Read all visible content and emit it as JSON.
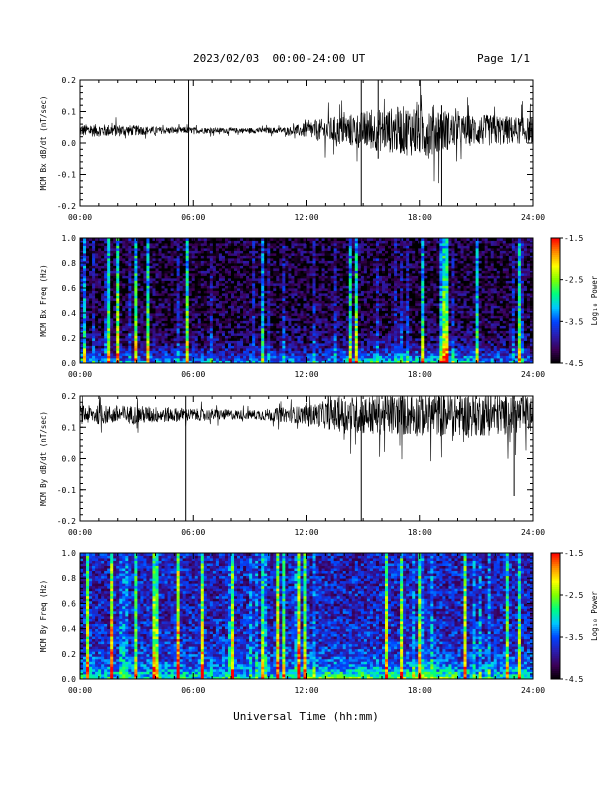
{
  "header": {
    "title": "2023/02/03  00:00-24:00 UT",
    "page": "Page 1/1"
  },
  "xlabel": "Universal Time (hh:mm)",
  "chart_data": [
    {
      "type": "line",
      "ylabel": "MCM Bx dB/dt (nT/sec)",
      "xlim": [
        0,
        24
      ],
      "ylim": [
        -0.2,
        0.2
      ],
      "yticks": [
        "-0.2",
        "-0.1",
        "0.0",
        "0.1",
        "0.2"
      ],
      "xticks": [
        "00:00",
        "06:00",
        "12:00",
        "18:00",
        "24:00"
      ],
      "baseline": 0.04,
      "amplitude_profile": [
        {
          "hour": 0,
          "amp": 0.02
        },
        {
          "hour": 2,
          "amp": 0.02
        },
        {
          "hour": 4,
          "amp": 0.012
        },
        {
          "hour": 8,
          "amp": 0.008
        },
        {
          "hour": 11,
          "amp": 0.01
        },
        {
          "hour": 13,
          "amp": 0.04
        },
        {
          "hour": 15,
          "amp": 0.06
        },
        {
          "hour": 18.5,
          "amp": 0.09
        },
        {
          "hour": 20,
          "amp": 0.05
        },
        {
          "hour": 22,
          "amp": 0.05
        },
        {
          "hour": 24,
          "amp": 0.04
        }
      ],
      "spikes": [
        {
          "hour": 5.75,
          "min": -0.2,
          "max": 0.2
        },
        {
          "hour": 14.9,
          "min": -0.2,
          "max": 0.2
        },
        {
          "hour": 15.8,
          "min": -0.05,
          "max": 0.2
        },
        {
          "hour": 19.15,
          "min": -0.2,
          "max": 0.12
        }
      ]
    },
    {
      "type": "heatmap",
      "ylabel": "MCM Bx Freq (Hz)",
      "xlim": [
        0,
        24
      ],
      "ylim": [
        0,
        1.0
      ],
      "yticks": [
        "0.0",
        "0.2",
        "0.4",
        "0.6",
        "0.8",
        "1.0"
      ],
      "xticks": [
        "00:00",
        "06:00",
        "12:00",
        "18:00",
        "24:00"
      ],
      "colorbar": {
        "label": "Log₁₀ Power",
        "range": [
          -4.5,
          -1.5
        ],
        "ticks": [
          "-1.5",
          "-2.5",
          "-3.5",
          "-4.5"
        ]
      },
      "colormap": [
        "#000000",
        "#3c0058",
        "#2a1db0",
        "#0044ff",
        "#00c8ff",
        "#00ff7f",
        "#7fff00",
        "#ffff00",
        "#ff8c00",
        "#ff0000"
      ],
      "background_level": -4.3,
      "low_freq_level": -3.3,
      "low_freq_enhanced_hours": [
        14,
        21
      ]
    },
    {
      "type": "line",
      "ylabel": "MCM By dB/dt (nT/sec)",
      "xlim": [
        0,
        24
      ],
      "ylim": [
        -0.2,
        0.2
      ],
      "yticks": [
        "-0.2",
        "-0.1",
        "0.0",
        "0.1",
        "0.2"
      ],
      "xticks": [
        "00:00",
        "06:00",
        "12:00",
        "18:00",
        "24:00"
      ],
      "baseline": 0.14,
      "amplitude_profile": [
        {
          "hour": 0,
          "amp": 0.03
        },
        {
          "hour": 3,
          "amp": 0.03
        },
        {
          "hour": 6,
          "amp": 0.02
        },
        {
          "hour": 9,
          "amp": 0.015
        },
        {
          "hour": 12,
          "amp": 0.03
        },
        {
          "hour": 14,
          "amp": 0.06
        },
        {
          "hour": 18,
          "amp": 0.07
        },
        {
          "hour": 21,
          "amp": 0.07
        },
        {
          "hour": 24,
          "amp": 0.06
        }
      ],
      "spikes": [
        {
          "hour": 5.6,
          "min": -0.2,
          "max": 0.2
        },
        {
          "hour": 14.9,
          "min": -0.2,
          "max": 0.2
        },
        {
          "hour": 23.0,
          "min": -0.12,
          "max": 0.2
        }
      ]
    },
    {
      "type": "heatmap",
      "ylabel": "MCM By Freq (Hz)",
      "xlim": [
        0,
        24
      ],
      "ylim": [
        0,
        1.0
      ],
      "yticks": [
        "0.0",
        "0.2",
        "0.4",
        "0.6",
        "0.8",
        "1.0"
      ],
      "xticks": [
        "00:00",
        "06:00",
        "12:00",
        "18:00",
        "24:00"
      ],
      "colorbar": {
        "label": "Log₁₀ Power",
        "range": [
          -4.5,
          -1.5
        ],
        "ticks": [
          "-1.5",
          "-2.5",
          "-3.5",
          "-4.5"
        ]
      },
      "colormap": [
        "#000000",
        "#3c0058",
        "#2a1db0",
        "#0044ff",
        "#00c8ff",
        "#00ff7f",
        "#7fff00",
        "#ffff00",
        "#ff8c00",
        "#ff0000"
      ],
      "background_level": -3.8,
      "low_freq_level": -2.9,
      "low_freq_enhanced_hours": [
        12,
        20
      ]
    }
  ]
}
